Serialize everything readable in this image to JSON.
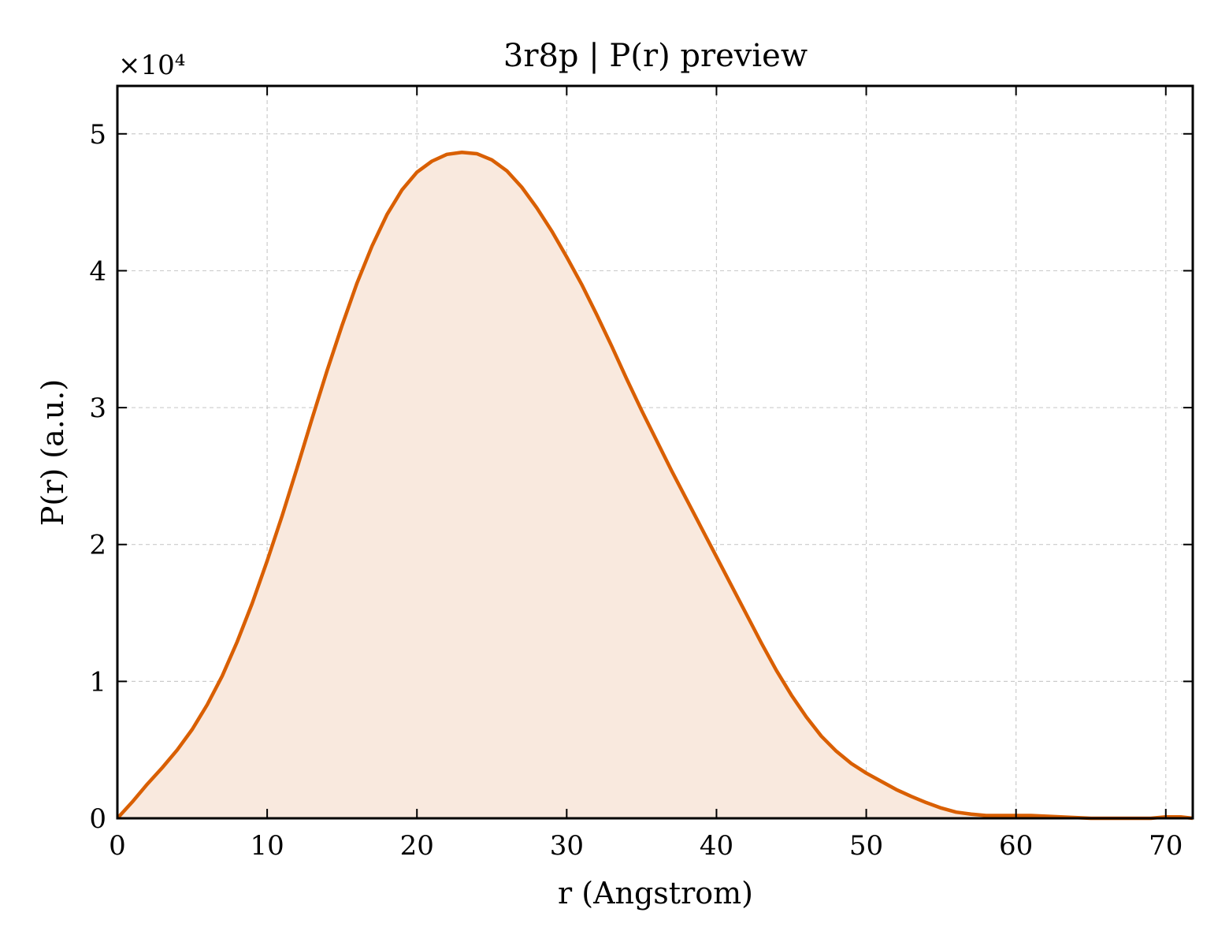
{
  "chart_data": {
    "type": "area",
    "title": "3r8p | P(r) preview",
    "xlabel": "r (Angstrom)",
    "ylabel": "P(r) (a.u.)",
    "y_multiplier_label": "×10⁴",
    "xlim": [
      0,
      71.8
    ],
    "ylim": [
      0,
      5.35
    ],
    "xticks": [
      0,
      10,
      20,
      30,
      40,
      50,
      60,
      70
    ],
    "yticks": [
      0,
      1,
      2,
      3,
      4,
      5
    ],
    "grid": true,
    "line_color": "#d95f02",
    "fill_color": "#f9e9de",
    "series": [
      {
        "x": [
          0,
          1,
          2,
          3,
          4,
          5,
          6,
          7,
          8,
          9,
          10,
          11,
          12,
          13,
          14,
          15,
          16,
          17,
          18,
          19,
          20,
          21,
          22,
          23,
          24,
          25,
          26,
          27,
          28,
          29,
          30,
          31,
          32,
          33,
          34,
          35,
          36,
          37,
          38,
          39,
          40,
          41,
          42,
          43,
          44,
          45,
          46,
          47,
          48,
          49,
          50,
          51,
          52,
          53,
          54,
          55,
          56,
          57,
          58,
          59,
          60,
          61,
          62,
          63,
          64,
          65,
          66,
          67,
          68,
          69,
          70,
          71,
          71.8
        ],
        "y": [
          0,
          0.12,
          0.25,
          0.37,
          0.5,
          0.65,
          0.83,
          1.04,
          1.29,
          1.57,
          1.88,
          2.21,
          2.56,
          2.92,
          3.27,
          3.6,
          3.91,
          4.18,
          4.41,
          4.59,
          4.72,
          4.8,
          4.85,
          4.865,
          4.855,
          4.81,
          4.73,
          4.61,
          4.46,
          4.29,
          4.1,
          3.9,
          3.68,
          3.45,
          3.21,
          2.98,
          2.76,
          2.54,
          2.33,
          2.12,
          1.91,
          1.7,
          1.49,
          1.28,
          1.08,
          0.9,
          0.74,
          0.6,
          0.49,
          0.4,
          0.33,
          0.27,
          0.21,
          0.16,
          0.115,
          0.075,
          0.045,
          0.03,
          0.02,
          0.02,
          0.02,
          0.02,
          0.015,
          0.01,
          0.005,
          0.0,
          0.0,
          0.0,
          0.0,
          0.0,
          0.01,
          0.01,
          0.0
        ]
      }
    ]
  }
}
